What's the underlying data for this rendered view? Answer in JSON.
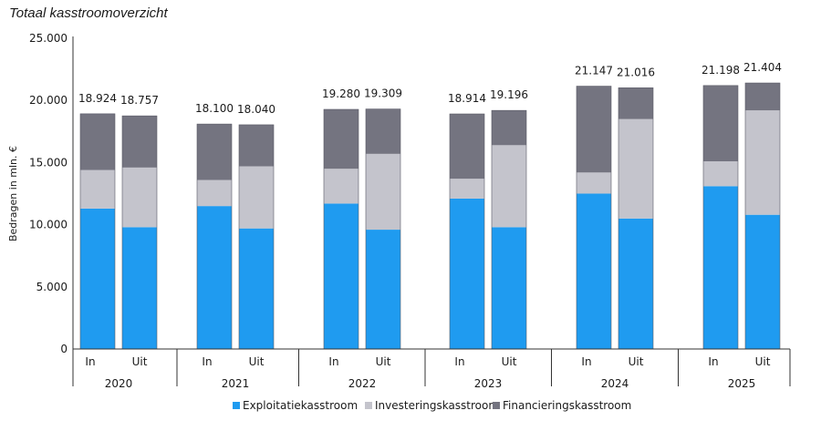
{
  "title": "Totaal kasstroomoverzicht",
  "chart_data": {
    "type": "bar",
    "stacked": true,
    "title": "Totaal kasstroomoverzicht",
    "ylabel": "Bedragen in mln. €",
    "xlabel": "",
    "ylim": [
      0,
      25000
    ],
    "yticks": [
      "0",
      "5.000",
      "10.000",
      "15.000",
      "20.000",
      "25.000"
    ],
    "ytick_values": [
      0,
      5000,
      10000,
      15000,
      20000,
      25000
    ],
    "groups": [
      {
        "year": "2020",
        "bars": [
          {
            "label": "In",
            "total": "18.924",
            "values": [
              11300,
              3100,
              4524
            ]
          },
          {
            "label": "Uit",
            "total": "18.757",
            "values": [
              9800,
              4800,
              4157
            ]
          }
        ]
      },
      {
        "year": "2021",
        "bars": [
          {
            "label": "In",
            "total": "18.100",
            "values": [
              11500,
              2100,
              4500
            ]
          },
          {
            "label": "Uit",
            "total": "18.040",
            "values": [
              9700,
              5000,
              3340
            ]
          }
        ]
      },
      {
        "year": "2022",
        "bars": [
          {
            "label": "In",
            "total": "19.280",
            "values": [
              11700,
              2800,
              4780
            ]
          },
          {
            "label": "Uit",
            "total": "19.309",
            "values": [
              9600,
              6100,
              3609
            ]
          }
        ]
      },
      {
        "year": "2023",
        "bars": [
          {
            "label": "In",
            "total": "18.914",
            "values": [
              12100,
              1600,
              5214
            ]
          },
          {
            "label": "Uit",
            "total": "19.196",
            "values": [
              9800,
              6600,
              2796
            ]
          }
        ]
      },
      {
        "year": "2024",
        "bars": [
          {
            "label": "In",
            "total": "21.147",
            "values": [
              12500,
              1700,
              6947
            ]
          },
          {
            "label": "Uit",
            "total": "21.016",
            "values": [
              10500,
              8000,
              2516
            ]
          }
        ]
      },
      {
        "year": "2025",
        "bars": [
          {
            "label": "In",
            "total": "21.198",
            "values": [
              13100,
              2000,
              6098
            ]
          },
          {
            "label": "Uit",
            "total": "21.404",
            "values": [
              10800,
              8400,
              2204
            ]
          }
        ]
      }
    ],
    "series": [
      {
        "name": "Exploitatiekasstroom",
        "color": "#1f9bf0"
      },
      {
        "name": "Investeringskasstroom",
        "color": "#c4c4cc"
      },
      {
        "name": "Financieringskasstroom",
        "color": "#747480"
      }
    ],
    "legend_position": "bottom-center",
    "grid": false
  }
}
